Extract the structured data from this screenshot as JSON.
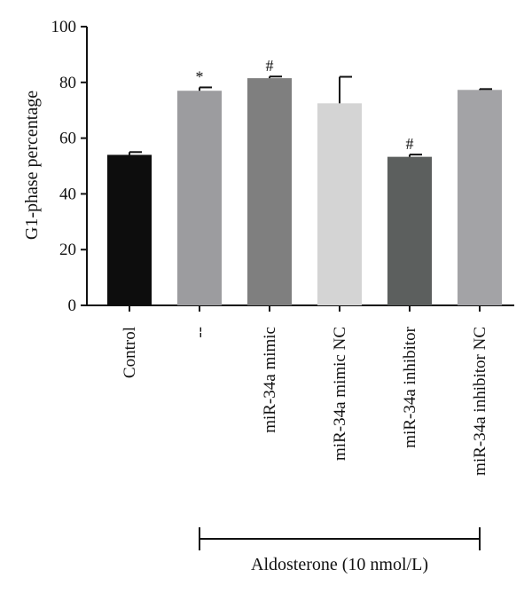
{
  "chart_data": {
    "type": "bar",
    "ylabel": "G1-phase percentage",
    "ylim": [
      0,
      100
    ],
    "yticks": [
      0,
      20,
      40,
      60,
      80,
      100
    ],
    "categories": [
      "Control",
      "--",
      "miR-34a mimic",
      "miR-34a mimic NC",
      "miR-34a inhibitor",
      "miR-34a inhibitor NC"
    ],
    "values": [
      54,
      77,
      81.5,
      72.5,
      53.3,
      77.3
    ],
    "errors": [
      1.0,
      1.2,
      0.6,
      9.5,
      0.8,
      0.3
    ],
    "significance": [
      "",
      "*",
      "#",
      "",
      "#",
      ""
    ],
    "bar_colors": [
      "#0d0d0d",
      "#9c9c9f",
      "#7f7f7f",
      "#d4d4d4",
      "#5c5f5e",
      "#a3a3a6"
    ],
    "grid": false,
    "group_label": "Aldosterone (10 nmol/L)",
    "group_span": [
      1,
      5
    ]
  }
}
